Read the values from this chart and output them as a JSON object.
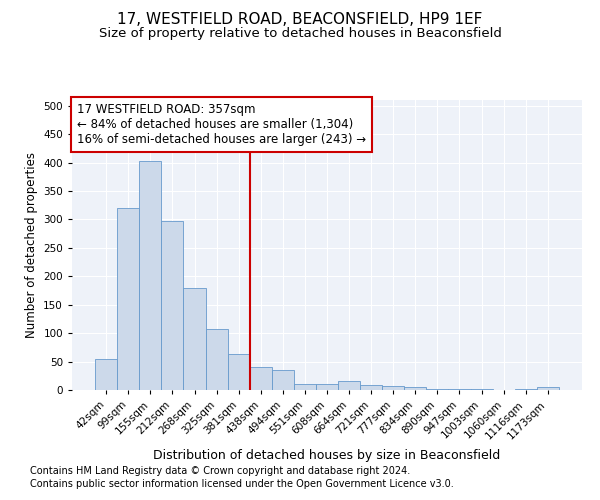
{
  "title1": "17, WESTFIELD ROAD, BEACONSFIELD, HP9 1EF",
  "title2": "Size of property relative to detached houses in Beaconsfield",
  "xlabel": "Distribution of detached houses by size in Beaconsfield",
  "ylabel": "Number of detached properties",
  "footnote1": "Contains HM Land Registry data © Crown copyright and database right 2024.",
  "footnote2": "Contains public sector information licensed under the Open Government Licence v3.0.",
  "annotation_line1": "17 WESTFIELD ROAD: 357sqm",
  "annotation_line2": "← 84% of detached houses are smaller (1,304)",
  "annotation_line3": "16% of semi-detached houses are larger (243) →",
  "bar_labels": [
    "42sqm",
    "99sqm",
    "155sqm",
    "212sqm",
    "268sqm",
    "325sqm",
    "381sqm",
    "438sqm",
    "494sqm",
    "551sqm",
    "608sqm",
    "664sqm",
    "721sqm",
    "777sqm",
    "834sqm",
    "890sqm",
    "947sqm",
    "1003sqm",
    "1060sqm",
    "1116sqm",
    "1173sqm"
  ],
  "bar_values": [
    54,
    320,
    402,
    297,
    179,
    108,
    63,
    40,
    36,
    11,
    10,
    15,
    9,
    7,
    5,
    2,
    1,
    1,
    0,
    1,
    5
  ],
  "bar_color": "#ccd9ea",
  "bar_edge_color": "#6699cc",
  "vline_color": "#cc0000",
  "vline_x": 6.5,
  "annotation_box_color": "#cc0000",
  "ylim": [
    0,
    510
  ],
  "yticks": [
    0,
    50,
    100,
    150,
    200,
    250,
    300,
    350,
    400,
    450,
    500
  ],
  "bg_color": "#eef2f9",
  "grid_color": "#ffffff",
  "title1_fontsize": 11,
  "title2_fontsize": 9.5,
  "xlabel_fontsize": 9,
  "ylabel_fontsize": 8.5,
  "annot_fontsize": 8.5,
  "tick_fontsize": 7.5,
  "footnote_fontsize": 7
}
